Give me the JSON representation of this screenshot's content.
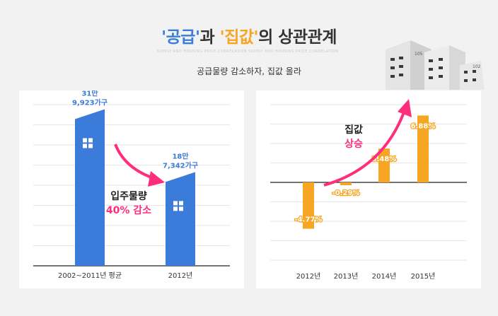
{
  "header": {
    "title_part1": "'공급'",
    "title_part2": "과 ",
    "title_part3": "'집값'",
    "title_part4": "의 상관관계",
    "deco_text": "SUPPLY AND HOUSING PRICE CORRELATION SUPPLY AND HOUSING PRICE CORRELATION",
    "subtitle": "공급물량 감소하자, 집값 올라"
  },
  "colors": {
    "blue": "#3b7bd9",
    "orange": "#f6a623",
    "pink": "#ff2d7a",
    "title": "#333333"
  },
  "left_annotation": {
    "line1": "입주물량",
    "line2": "40% 감소"
  },
  "right_annotation": {
    "line1": "집값",
    "line2": "상승"
  },
  "building_labels": [
    "105",
    "102"
  ],
  "chart_data": [
    {
      "type": "bar",
      "categories": [
        "2002~2011년 평균",
        "2012년"
      ],
      "values": [
        319923,
        187342
      ],
      "value_labels": [
        [
          "31만",
          "9,923가구"
        ],
        [
          "18만",
          "7,342가구"
        ]
      ],
      "ylim": [
        0,
        340000
      ],
      "grid": true
    },
    {
      "type": "bar",
      "categories": [
        "2012년",
        "2013년",
        "2014년",
        "2015년"
      ],
      "values": [
        -4.77,
        -0.29,
        3.48,
        6.88
      ],
      "value_labels": [
        "-4.77%",
        "-0.29%",
        "3.48%",
        "6.88%"
      ],
      "ylim": [
        -8,
        8
      ],
      "grid": true
    }
  ]
}
